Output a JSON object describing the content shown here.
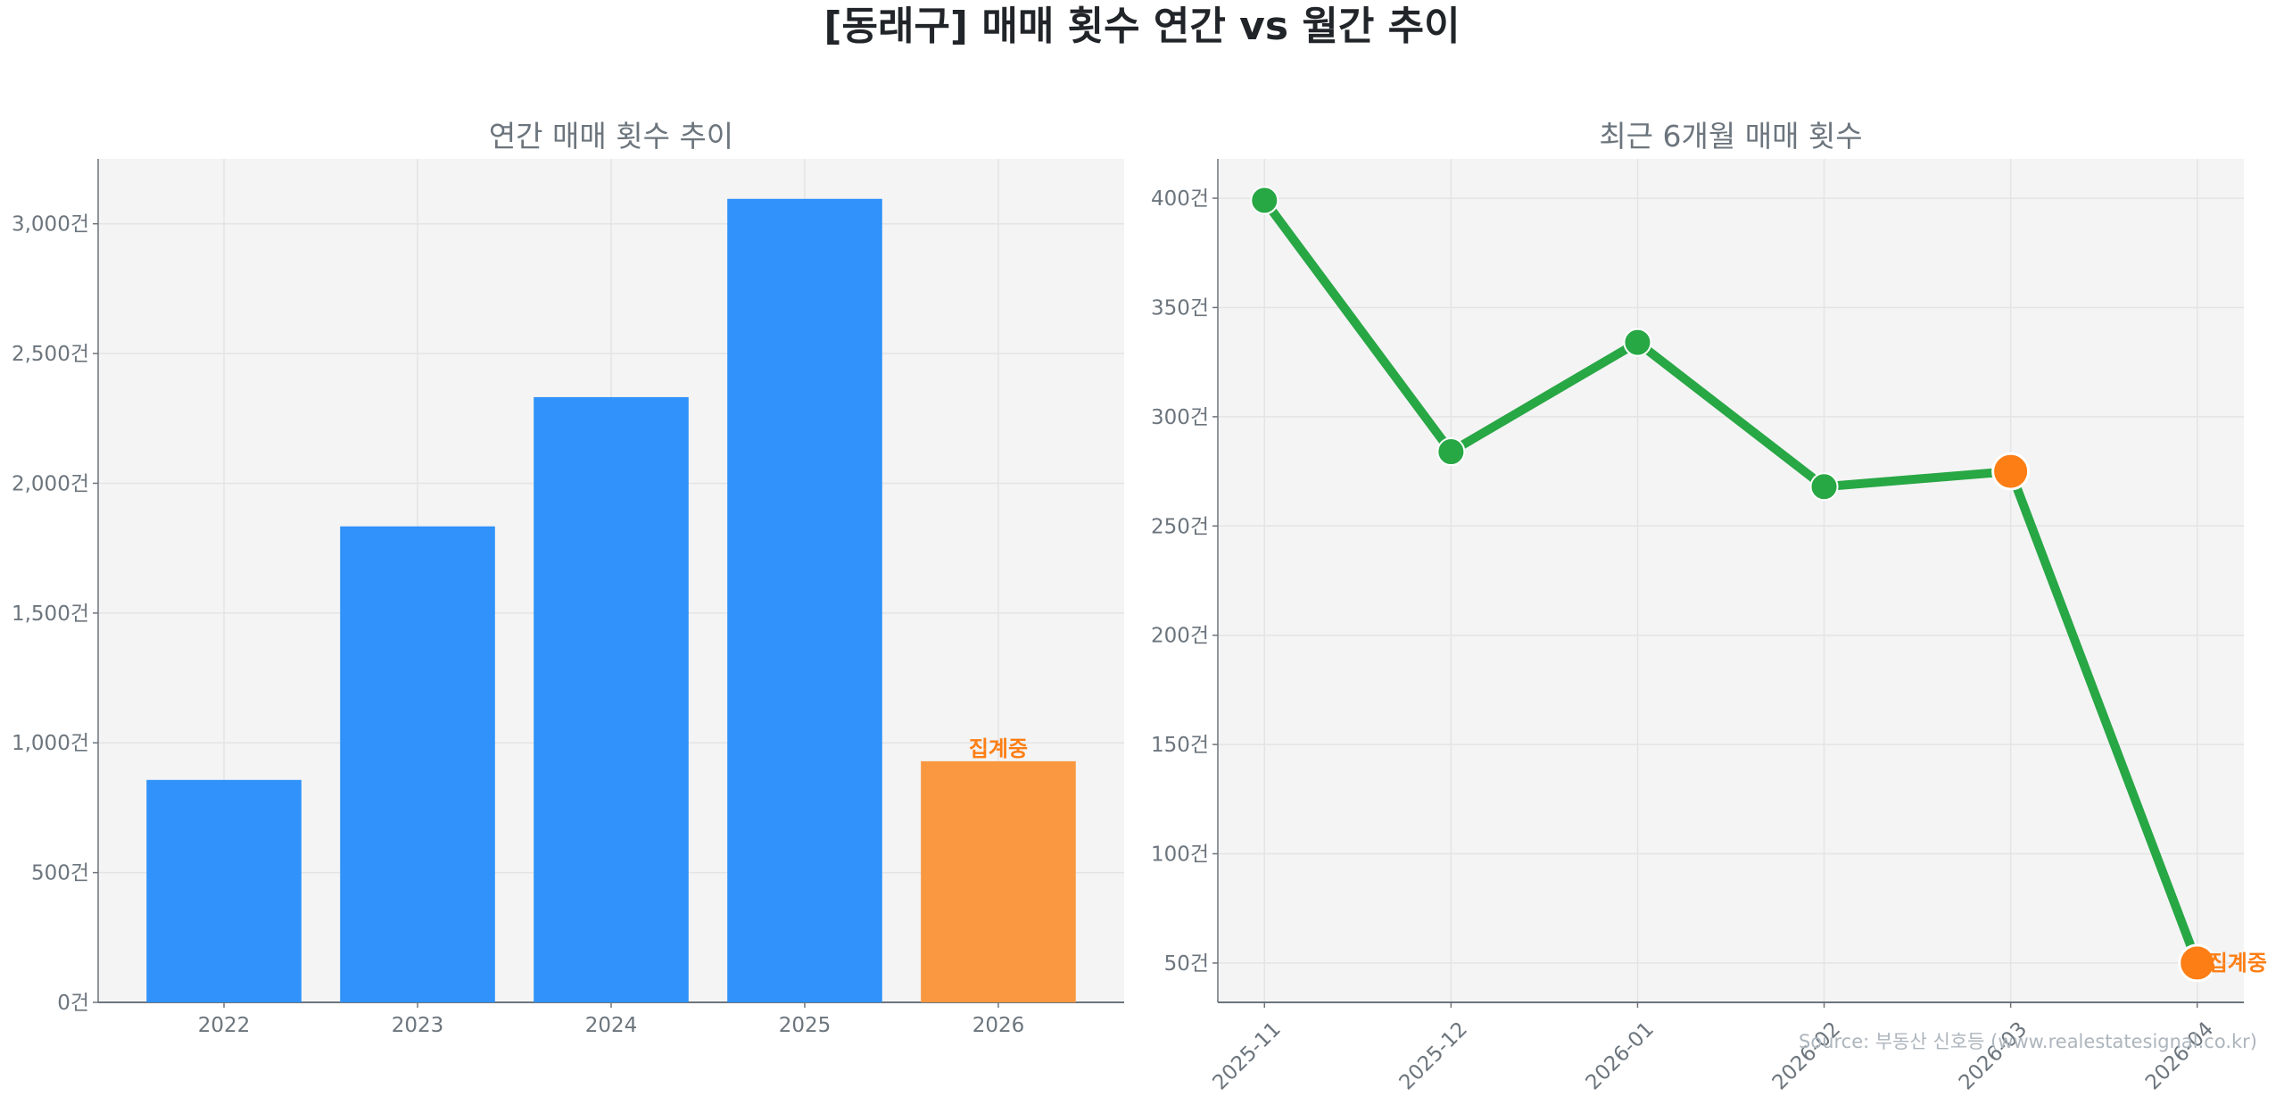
{
  "title": "[동래구] 매매 횟수 연간 vs 월간 추이",
  "source": "Source: 부동산 신호등 (www.realestatesignal.co.kr)",
  "colors": {
    "bar": "#3092fa",
    "bar_partial": "#f99840",
    "line": "#28a745",
    "marker": "#28a745",
    "marker_highlight": "#fd7e14",
    "note": "#fd7e14",
    "plot_bg": "#f4f4f4"
  },
  "chart_data": [
    {
      "type": "bar",
      "title": "연간 매매 횟수 추이",
      "categories": [
        "2022",
        "2023",
        "2024",
        "2025",
        "2026"
      ],
      "values": [
        857,
        1834,
        2332,
        3096,
        929
      ],
      "highlight_index": 4,
      "annotation": "집계중",
      "ylim": [
        0,
        3250
      ],
      "yticks": [
        0,
        500,
        1000,
        1500,
        2000,
        2500,
        3000
      ],
      "ytick_labels": [
        "0건",
        "500건",
        "1,000건",
        "1,500건",
        "2,000건",
        "2,500건",
        "3,000건"
      ],
      "grid": true
    },
    {
      "type": "line",
      "title": "최근 6개월 매매 횟수",
      "categories": [
        "2025-11",
        "2025-12",
        "2026-01",
        "2026-02",
        "2026-03",
        "2026-04"
      ],
      "values": [
        399,
        284,
        334,
        268,
        275,
        50
      ],
      "highlight_indices": [
        4,
        5
      ],
      "annotation": "집계중",
      "ylim": [
        32,
        418
      ],
      "yticks": [
        50,
        100,
        150,
        200,
        250,
        300,
        350,
        400
      ],
      "ytick_labels": [
        "50건",
        "100건",
        "150건",
        "200건",
        "250건",
        "300건",
        "350건",
        "400건"
      ],
      "grid": true
    }
  ]
}
